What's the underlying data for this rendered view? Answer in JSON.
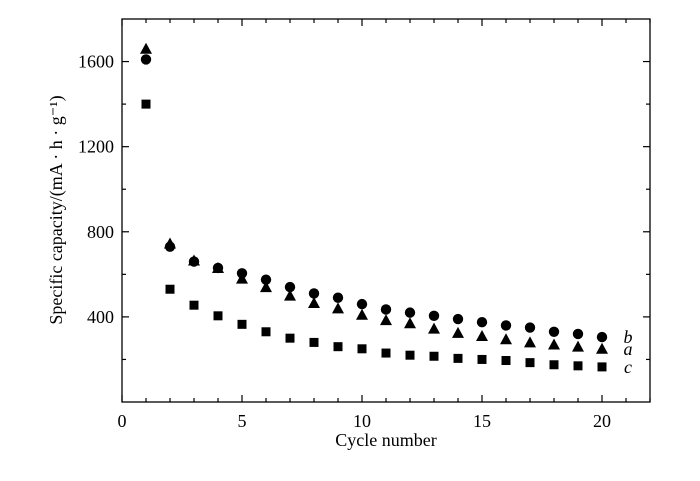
{
  "chart_data": {
    "type": "scatter",
    "title": "",
    "xlabel": "Cycle number",
    "ylabel": "Specific capacity/(mA · h · g⁻¹)",
    "xlim": [
      0,
      22
    ],
    "ylim": [
      0,
      1800
    ],
    "xticks": [
      0,
      5,
      10,
      15,
      20
    ],
    "yticks": [
      400,
      800,
      1200,
      1600
    ],
    "grid": false,
    "legend": "none",
    "series": [
      {
        "name": "a",
        "marker": "triangle",
        "color": "#000000",
        "x": [
          1,
          2,
          3,
          4,
          5,
          6,
          7,
          8,
          9,
          10,
          11,
          12,
          13,
          14,
          15,
          16,
          17,
          18,
          19,
          20
        ],
        "values": [
          1660,
          745,
          665,
          630,
          580,
          540,
          500,
          465,
          440,
          410,
          385,
          370,
          345,
          325,
          310,
          295,
          280,
          270,
          260,
          250
        ]
      },
      {
        "name": "b",
        "marker": "circle",
        "color": "#000000",
        "x": [
          1,
          2,
          3,
          4,
          5,
          6,
          7,
          8,
          9,
          10,
          11,
          12,
          13,
          14,
          15,
          16,
          17,
          18,
          19,
          20
        ],
        "values": [
          1610,
          730,
          660,
          630,
          605,
          575,
          540,
          510,
          490,
          460,
          435,
          420,
          405,
          390,
          375,
          360,
          350,
          330,
          320,
          305
        ]
      },
      {
        "name": "c",
        "marker": "square",
        "color": "#000000",
        "x": [
          1,
          2,
          3,
          4,
          5,
          6,
          7,
          8,
          9,
          10,
          11,
          12,
          13,
          14,
          15,
          16,
          17,
          18,
          19,
          20
        ],
        "values": [
          1400,
          530,
          455,
          405,
          365,
          330,
          300,
          280,
          260,
          250,
          230,
          220,
          215,
          205,
          200,
          195,
          185,
          175,
          170,
          165
        ]
      }
    ]
  }
}
